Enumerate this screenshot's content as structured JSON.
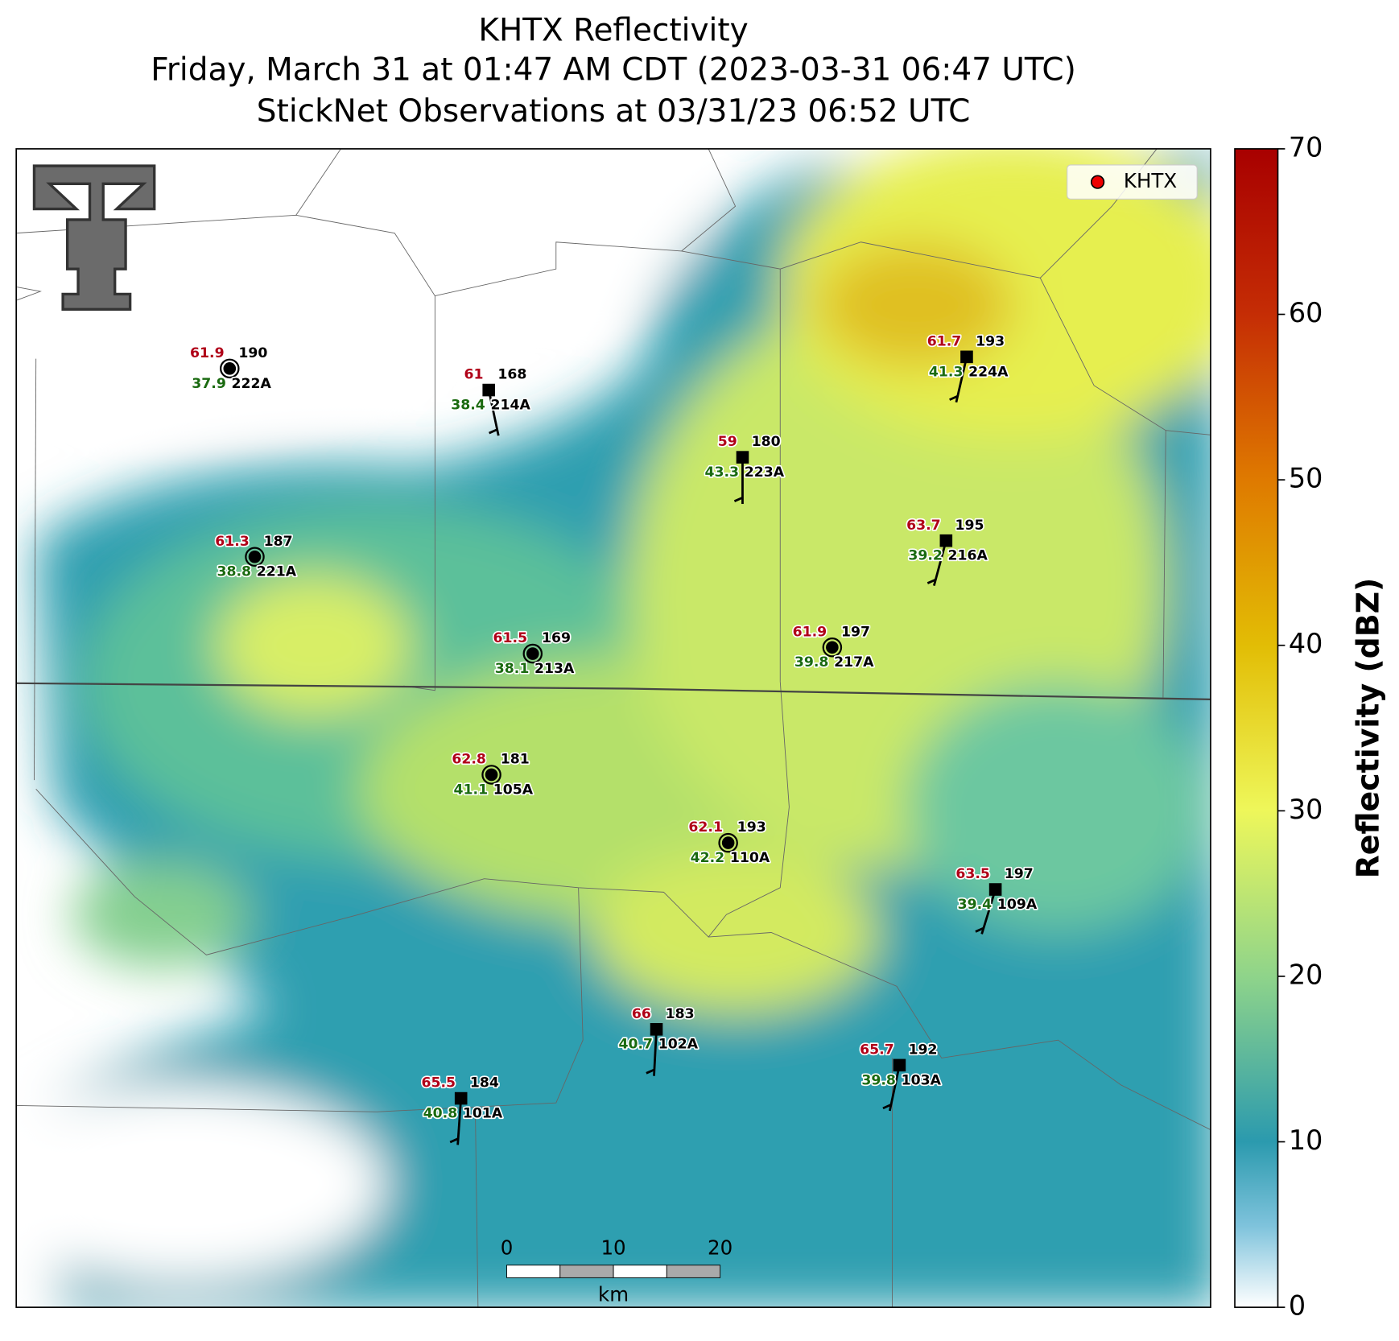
{
  "title": [
    "KHTX Reflectivity",
    "Friday, March 31 at 01:47 AM CDT (2023-03-31 06:47 UTC)",
    "StickNet Observations at 03/31/23 06:52 UTC"
  ],
  "legend": "KHTX",
  "colorbar": {
    "label": "Reflectivity (dBZ)",
    "lim": [
      0,
      70
    ],
    "ticks": [
      0,
      10,
      20,
      30,
      40,
      50,
      60,
      70
    ]
  },
  "scale_bar": {
    "ticks": [
      0,
      10,
      20
    ],
    "unit": "km"
  },
  "stations": [
    {
      "id": "222A",
      "temperature": 61.9,
      "dewpoint": 37.9,
      "wind_dir": 190
    },
    {
      "id": "214A",
      "temperature": 61.0,
      "dewpoint": 38.4,
      "wind_dir": 168
    },
    {
      "id": "224A",
      "temperature": 61.7,
      "dewpoint": 41.3,
      "wind_dir": 193
    },
    {
      "id": "223A",
      "temperature": 59.0,
      "dewpoint": 43.3,
      "wind_dir": 180
    },
    {
      "id": "221A",
      "temperature": 61.3,
      "dewpoint": 38.8,
      "wind_dir": 187
    },
    {
      "id": "216A",
      "temperature": 63.7,
      "dewpoint": 39.2,
      "wind_dir": 195
    },
    {
      "id": "213A",
      "temperature": 61.5,
      "dewpoint": 38.1,
      "wind_dir": 169
    },
    {
      "id": "217A",
      "temperature": 61.9,
      "dewpoint": 39.8,
      "wind_dir": 197
    },
    {
      "id": "105A",
      "temperature": 62.8,
      "dewpoint": 41.1,
      "wind_dir": 181
    },
    {
      "id": "110A",
      "temperature": 62.1,
      "dewpoint": 42.2,
      "wind_dir": 193
    },
    {
      "id": "109A",
      "temperature": 63.5,
      "dewpoint": 39.4,
      "wind_dir": 197
    },
    {
      "id": "102A",
      "temperature": 66.0,
      "dewpoint": 40.7,
      "wind_dir": 183
    },
    {
      "id": "103A",
      "temperature": 65.7,
      "dewpoint": 39.8,
      "wind_dir": 192
    },
    {
      "id": "101A",
      "temperature": 65.5,
      "dewpoint": 40.8,
      "wind_dir": 184
    }
  ]
}
